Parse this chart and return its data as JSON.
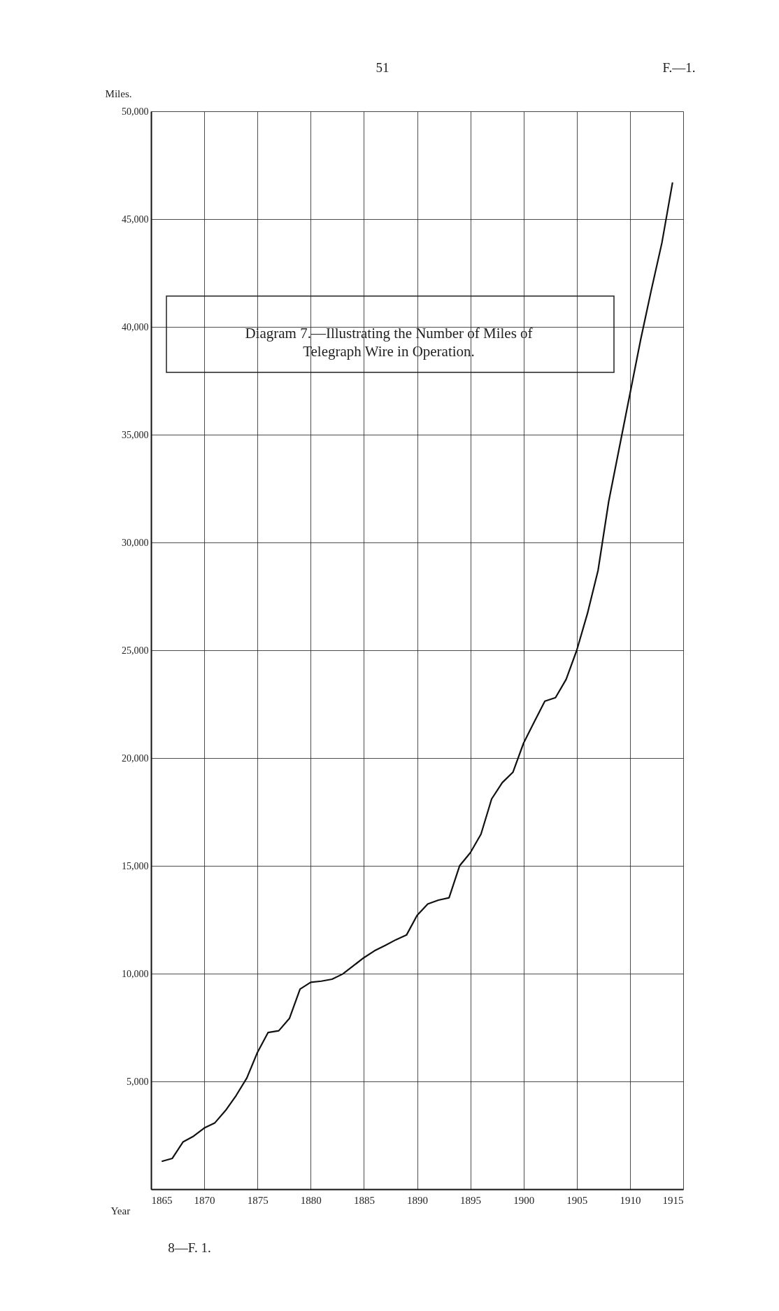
{
  "chart_data": {
    "type": "line",
    "title": "Diagram 7.—Illustrating the Number of Miles of\nTelegraph Wire in Operation.",
    "xlabel": "Year",
    "ylabel": "Miles.",
    "x": [
      1866,
      1867,
      1868,
      1869,
      1870,
      1871,
      1872,
      1873,
      1874,
      1875,
      1876,
      1877,
      1878,
      1879,
      1880,
      1881,
      1882,
      1883,
      1884,
      1885,
      1886,
      1887,
      1888,
      1889,
      1890,
      1891,
      1892,
      1893,
      1894,
      1895,
      1896,
      1897,
      1898,
      1899,
      1900,
      1901,
      1902,
      1903,
      1904,
      1905,
      1906,
      1907,
      1908,
      1909,
      1910,
      1911,
      1912,
      1913,
      1914
    ],
    "series": [
      {
        "color": "#111111",
        "values": [
          1290,
          1430,
          2190,
          2460,
          2840,
          3080,
          3650,
          4350,
          5160,
          6350,
          7270,
          7350,
          7920,
          9280,
          9600,
          9650,
          9740,
          9980,
          10360,
          10740,
          11060,
          11310,
          11570,
          11790,
          12700,
          13230,
          13410,
          13520,
          15010,
          15610,
          16470,
          18100,
          18860,
          19340,
          20690,
          21670,
          22640,
          22800,
          23650,
          25000,
          26700,
          28700,
          31900,
          34400,
          36900,
          39400,
          41700,
          43900,
          46700
        ]
      }
    ],
    "xlim": [
      1865,
      1915
    ],
    "xticks": [
      1865,
      1870,
      1875,
      1880,
      1885,
      1890,
      1895,
      1900,
      1905,
      1910,
      1915
    ],
    "ylim": [
      0,
      50000
    ],
    "yticks": [
      {
        "value": 5000,
        "label": "5,000"
      },
      {
        "value": 10000,
        "label": "10,000"
      },
      {
        "value": 15000,
        "label": "15,000"
      },
      {
        "value": 20000,
        "label": "20,000"
      },
      {
        "value": 25000,
        "label": "25,000"
      },
      {
        "value": 30000,
        "label": "30,000"
      },
      {
        "value": 35000,
        "label": "35,000"
      },
      {
        "value": 40000,
        "label": "40,000"
      },
      {
        "value": 45000,
        "label": "45,000"
      },
      {
        "value": 50000,
        "label": "50,000"
      }
    ],
    "grid": true,
    "annotations": [
      "51",
      "F.—1.",
      "8—F. 1."
    ]
  }
}
